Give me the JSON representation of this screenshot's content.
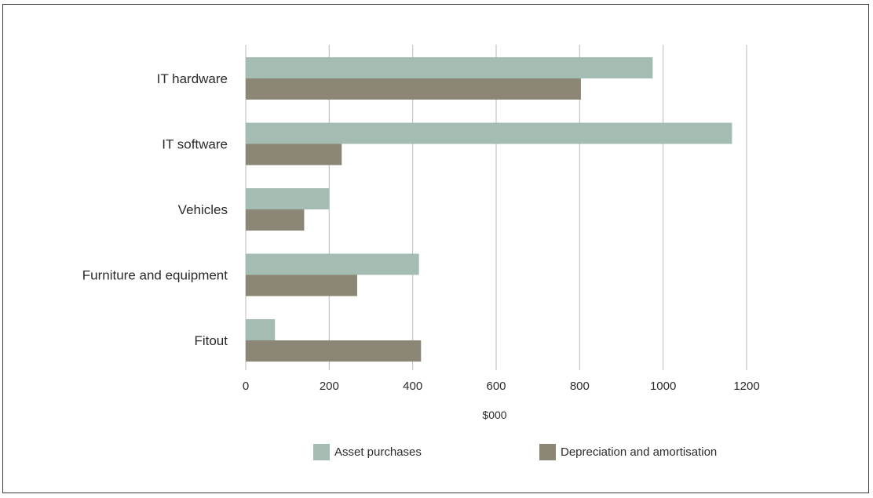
{
  "chart_data": {
    "type": "bar",
    "orientation": "horizontal",
    "categories": [
      "IT hardware",
      "IT software",
      "Vehicles",
      "Furniture and equipment",
      "Fitout"
    ],
    "series": [
      {
        "name": "Asset purchases",
        "color": "#a4bcb1",
        "values": [
          975,
          1165,
          200,
          415,
          70
        ]
      },
      {
        "name": "Depreciation and amortisation",
        "color": "#8b8676",
        "values": [
          803,
          230,
          140,
          267,
          420
        ]
      }
    ],
    "xlabel": "$000",
    "ylabel": "",
    "xlim": [
      0,
      1200
    ],
    "x_ticks": [
      0,
      200,
      400,
      600,
      800,
      1000,
      1200
    ],
    "grid": "vertical",
    "legend_position": "bottom"
  }
}
